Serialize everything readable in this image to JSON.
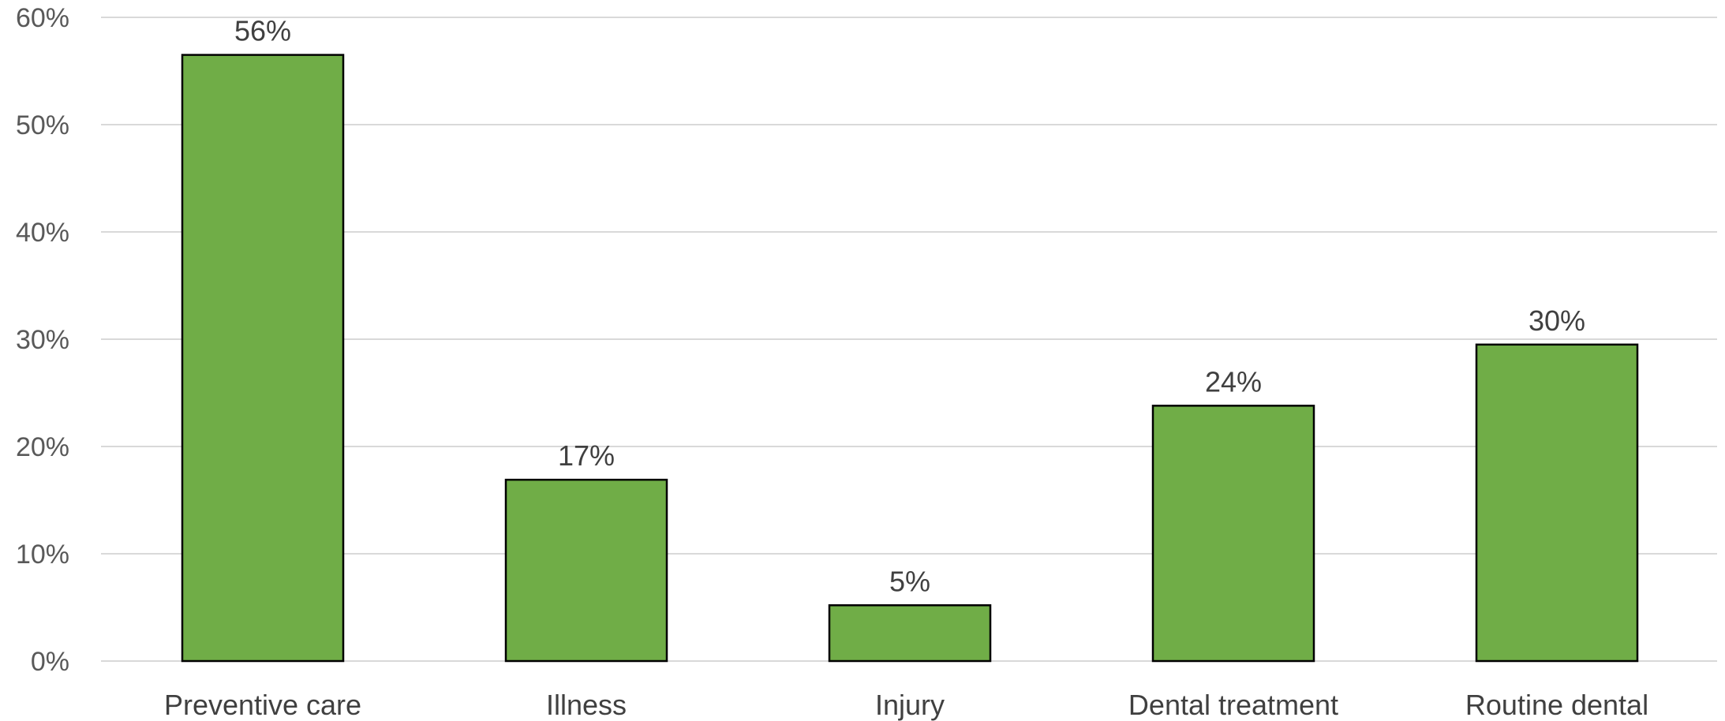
{
  "chart_data": {
    "type": "bar",
    "categories": [
      "Preventive care",
      "Illness",
      "Injury",
      "Dental treatment",
      "Routine dental"
    ],
    "values": [
      56.5,
      16.9,
      5.2,
      23.8,
      29.5
    ],
    "data_labels": [
      "56%",
      "17%",
      "5%",
      "24%",
      "30%"
    ],
    "yticks": [
      "0%",
      "10%",
      "20%",
      "30%",
      "40%",
      "50%",
      "60%"
    ],
    "ylim": [
      0,
      60
    ],
    "ytick_step": 10,
    "grid": true,
    "legend": "none",
    "bar_color": "#70ad47"
  }
}
